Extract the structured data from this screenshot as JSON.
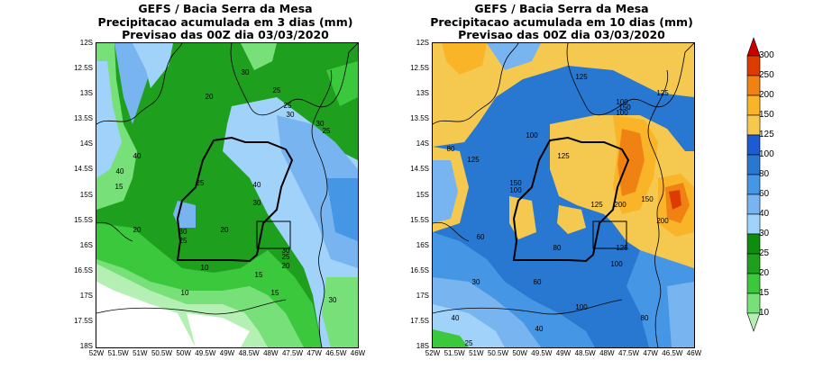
{
  "maps": [
    {
      "id": "left",
      "title_lines": [
        "GEFS / Bacia Serra da Mesa",
        "Precipitacao acumulada em 3 dias (mm)",
        "Previsao das 00Z dia 03/03/2020"
      ],
      "contour_labels": [
        "40",
        "30",
        "20",
        "25",
        "30",
        "25",
        "30",
        "25",
        "40",
        "30",
        "25",
        "20",
        "30",
        "25",
        "20",
        "15",
        "10",
        "15",
        "30",
        "25",
        "20",
        "10",
        "15",
        "30",
        "40"
      ]
    },
    {
      "id": "right",
      "title_lines": [
        "GEFS / Bacia Serra da Mesa",
        "Precipitacao acumulada em 10 dias (mm)",
        "Previsao das 00Z dia 03/03/2020"
      ],
      "contour_labels": [
        "125",
        "125",
        "100",
        "100",
        "150",
        "100",
        "125",
        "150",
        "100",
        "80",
        "125",
        "200",
        "125",
        "150",
        "200",
        "60",
        "80",
        "125",
        "100",
        "30",
        "60",
        "40",
        "100",
        "40",
        "80",
        "25"
      ]
    }
  ],
  "y_ticks": [
    "12S",
    "12.5S",
    "13S",
    "13.5S",
    "14S",
    "14.5S",
    "15S",
    "15.5S",
    "16S",
    "16.5S",
    "17S",
    "17.5S",
    "18S"
  ],
  "x_ticks": [
    "52W",
    "51.5W",
    "51W",
    "50.5W",
    "50W",
    "49.5W",
    "49W",
    "48.5W",
    "48W",
    "47.5W",
    "47W",
    "46.5W",
    "46W"
  ],
  "colorbar": {
    "levels": [
      "10",
      "15",
      "20",
      "25",
      "30",
      "40",
      "60",
      "80",
      "100",
      "125",
      "150",
      "200",
      "250",
      "300"
    ],
    "colors": [
      "#b4f0b4",
      "#78e078",
      "#3cc83c",
      "#1ea01e",
      "#0e8c0e",
      "#a0d2fa",
      "#78b4f0",
      "#4696e6",
      "#2878d2",
      "#1e5ad2",
      "#f5c850",
      "#fab428",
      "#f08214",
      "#dc3c00",
      "#c80000"
    ]
  }
}
